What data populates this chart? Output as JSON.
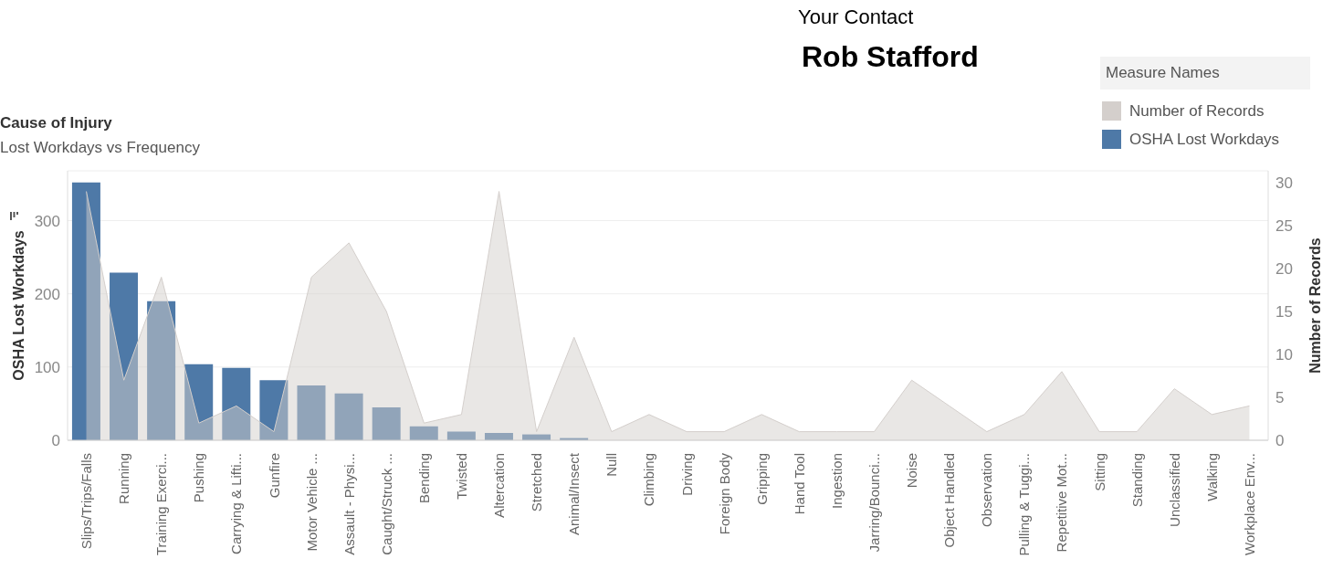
{
  "chart_data": {
    "type": "bar",
    "title": "Cause of Injury",
    "subtitle": "Lost Workdays vs Frequency",
    "ylabel": "OSHA Lost Workdays",
    "y2label": "Number of Records",
    "legend_title": "Measure Names",
    "annotations": [
      "Your Contact",
      "Rob Stafford"
    ],
    "categories": [
      "Slips/Trips/Falls",
      "Running",
      "Training Exerci...",
      "Pushing",
      "Carrying & Lifti...",
      "Gunfire",
      "Motor Vehicle ...",
      "Assault - Physi...",
      "Caught/Struck ...",
      "Bending",
      "Twisted",
      "Altercation",
      "Stretched",
      "Animal/Insect",
      "Null",
      "Climbing",
      "Driving",
      "Foreign Body",
      "Gripping",
      "Hand Tool",
      "Ingestion",
      "Jarring/Bounci...",
      "Noise",
      "Object Handled",
      "Observation",
      "Pulling & Tuggi...",
      "Repetitive Mot...",
      "Sitting",
      "Standing",
      "Unclassified",
      "Walking",
      "Workplace Env..."
    ],
    "series": [
      {
        "name": "Number of Records",
        "type": "area",
        "axis": "y2",
        "color": "#d4cfcc",
        "values": [
          29,
          7,
          19,
          2,
          4,
          1,
          19,
          23,
          15,
          2,
          3,
          29,
          1,
          12,
          1,
          3,
          1,
          1,
          3,
          1,
          1,
          1,
          7,
          4,
          1,
          3,
          8,
          1,
          1,
          6,
          3,
          4
        ]
      },
      {
        "name": "OSHA Lost Workdays",
        "color": "#4e79a7",
        "values": [
          352,
          229,
          190,
          104,
          99,
          82,
          75,
          64,
          45,
          19,
          12,
          10,
          8,
          3,
          0,
          0,
          0,
          0,
          0,
          0,
          0,
          0,
          0,
          0,
          0,
          0,
          0,
          0,
          0,
          0,
          0,
          0
        ]
      }
    ],
    "ylim": [
      0,
      368
    ],
    "yticks": [
      0,
      100,
      200,
      300
    ],
    "y2lim": [
      0,
      31.4
    ],
    "y2ticks": [
      0,
      5,
      10,
      15,
      20,
      25,
      30
    ],
    "grid": "y",
    "legend": "top right"
  }
}
